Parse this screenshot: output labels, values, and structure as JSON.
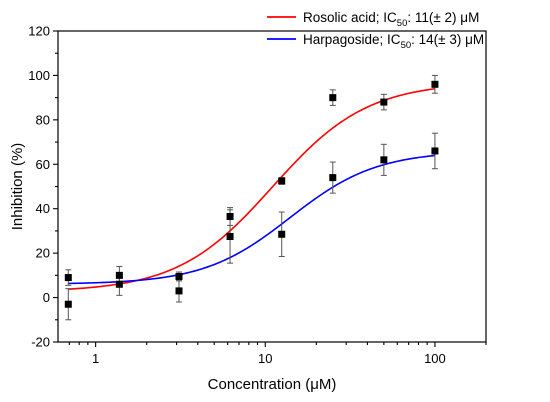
{
  "chart_data": {
    "type": "scatter",
    "title": "",
    "xlabel": "Concentration (μM)",
    "ylabel": "Inhibition (%)",
    "xscale": "log",
    "xlim": [
      0.6,
      200
    ],
    "ylim": [
      -20,
      120
    ],
    "xticks": [
      1,
      10,
      100
    ],
    "xtick_labels": [
      "1",
      "10",
      "100"
    ],
    "yticks": [
      -20,
      0,
      20,
      40,
      60,
      80,
      100,
      120
    ],
    "ytick_labels": [
      "-20",
      "0",
      "20",
      "40",
      "60",
      "80",
      "100",
      "120"
    ],
    "grid": false,
    "legend_position": "top-right",
    "series": [
      {
        "name": "Rosolic acid",
        "legend_prefix": "Rosolic acid; IC",
        "legend_sub": "50",
        "legend_suffix": ": 11(± 2) μM",
        "color": "#ff0000",
        "marker_color": "#000000",
        "x": [
          0.69,
          1.38,
          3.1,
          6.2,
          12.5,
          25,
          50,
          100
        ],
        "y": [
          9,
          10,
          9.5,
          36.5,
          52.5,
          90,
          88,
          96
        ],
        "err": [
          3.5,
          4,
          2,
          4,
          1.5,
          3.5,
          3.5,
          4
        ],
        "fit": {
          "bottom": 2.5,
          "top": 97,
          "ic50": 11,
          "hill": 1.55
        }
      },
      {
        "name": "Harpagoside",
        "legend_prefix": "Harpagoside; IC",
        "legend_sub": "50",
        "legend_suffix": ": 14(± 3) μM",
        "color": "#0000ff",
        "marker_color": "#000000",
        "x": [
          0.69,
          1.38,
          3.1,
          6.2,
          12.5,
          25,
          50,
          100
        ],
        "y": [
          -3,
          6,
          3,
          27.5,
          28.5,
          54,
          62,
          66
        ],
        "err": [
          7,
          5,
          5,
          12,
          10,
          7,
          7,
          8
        ],
        "fit": {
          "bottom": 6,
          "top": 66,
          "ic50": 14,
          "hill": 1.7
        }
      }
    ]
  }
}
